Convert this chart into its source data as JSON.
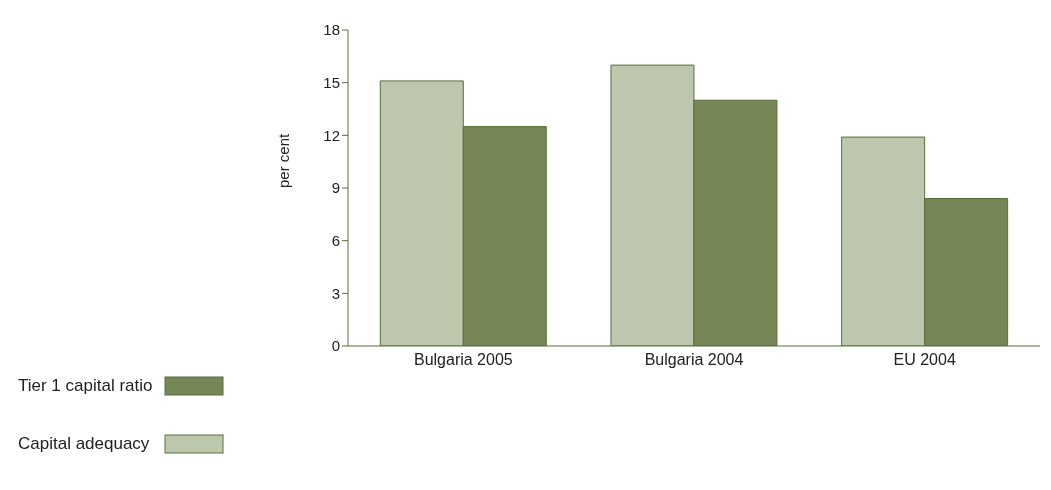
{
  "chart_data": {
    "type": "bar",
    "ylabel": "per cent",
    "categories": [
      "Bulgaria 2005",
      "Bulgaria 2004",
      "EU 2004"
    ],
    "series": [
      {
        "name": "Capital adequacy",
        "color": "#bcc7ad",
        "values": [
          15.1,
          16.0,
          11.9
        ]
      },
      {
        "name": "Tier 1 capital ratio",
        "color": "#758657",
        "values": [
          12.5,
          14.0,
          8.4
        ]
      }
    ],
    "ylim": [
      0,
      18
    ],
    "yticks": [
      0,
      3,
      6,
      9,
      12,
      15,
      18
    ],
    "grid": false,
    "legend": "left"
  }
}
